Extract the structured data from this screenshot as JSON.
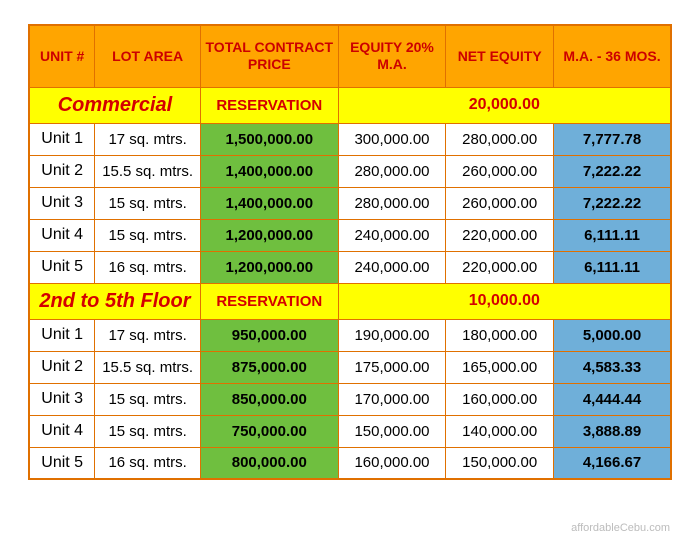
{
  "headers": {
    "unit": "UNIT #",
    "lot": "LOT AREA",
    "price": "TOTAL CONTRACT PRICE",
    "equity": "EQUITY 20% M.A.",
    "net": "NET EQUITY",
    "ma": "M.A. - 36 MOS."
  },
  "sections": [
    {
      "label": "Commercial",
      "reservation_label": "RESERVATION",
      "reservation_value": "20,000.00",
      "rows": [
        {
          "unit": "Unit 1",
          "lot": "17 sq. mtrs.",
          "price": "1,500,000.00",
          "equity": "300,000.00",
          "net": "280,000.00",
          "ma": "7,777.78"
        },
        {
          "unit": "Unit 2",
          "lot": "15.5 sq. mtrs.",
          "price": "1,400,000.00",
          "equity": "280,000.00",
          "net": "260,000.00",
          "ma": "7,222.22"
        },
        {
          "unit": "Unit 3",
          "lot": "15 sq. mtrs.",
          "price": "1,400,000.00",
          "equity": "280,000.00",
          "net": "260,000.00",
          "ma": "7,222.22"
        },
        {
          "unit": "Unit 4",
          "lot": "15 sq. mtrs.",
          "price": "1,200,000.00",
          "equity": "240,000.00",
          "net": "220,000.00",
          "ma": "6,111.11"
        },
        {
          "unit": "Unit 5",
          "lot": "16 sq. mtrs.",
          "price": "1,200,000.00",
          "equity": "240,000.00",
          "net": "220,000.00",
          "ma": "6,111.11"
        }
      ]
    },
    {
      "label": "2nd to 5th Floor",
      "reservation_label": "RESERVATION",
      "reservation_value": "10,000.00",
      "rows": [
        {
          "unit": "Unit 1",
          "lot": "17 sq. mtrs.",
          "price": "950,000.00",
          "equity": "190,000.00",
          "net": "180,000.00",
          "ma": "5,000.00"
        },
        {
          "unit": "Unit 2",
          "lot": "15.5 sq. mtrs.",
          "price": "875,000.00",
          "equity": "175,000.00",
          "net": "165,000.00",
          "ma": "4,583.33"
        },
        {
          "unit": "Unit 3",
          "lot": "15 sq. mtrs.",
          "price": "850,000.00",
          "equity": "170,000.00",
          "net": "160,000.00",
          "ma": "4,444.44"
        },
        {
          "unit": "Unit 4",
          "lot": "15 sq. mtrs.",
          "price": "750,000.00",
          "equity": "150,000.00",
          "net": "140,000.00",
          "ma": "3,888.89"
        },
        {
          "unit": "Unit 5",
          "lot": "16 sq. mtrs.",
          "price": "800,000.00",
          "equity": "160,000.00",
          "net": "150,000.00",
          "ma": "4,166.67"
        }
      ]
    }
  ],
  "watermark": "affordableCebu.com",
  "styling": {
    "header_bg": "#ffa500",
    "header_text": "#cc0000",
    "border_color": "#e07000",
    "section_bg": "#ffff00",
    "section_text": "#d40000",
    "price_bg": "#6fbf3f",
    "ma_bg": "#6fafd9",
    "body_text": "#000000",
    "watermark_color": "#bcbcbc",
    "font_family": "Arial",
    "header_fontsize": 14,
    "section_label_fontsize": 20,
    "cell_fontsize": 15
  }
}
